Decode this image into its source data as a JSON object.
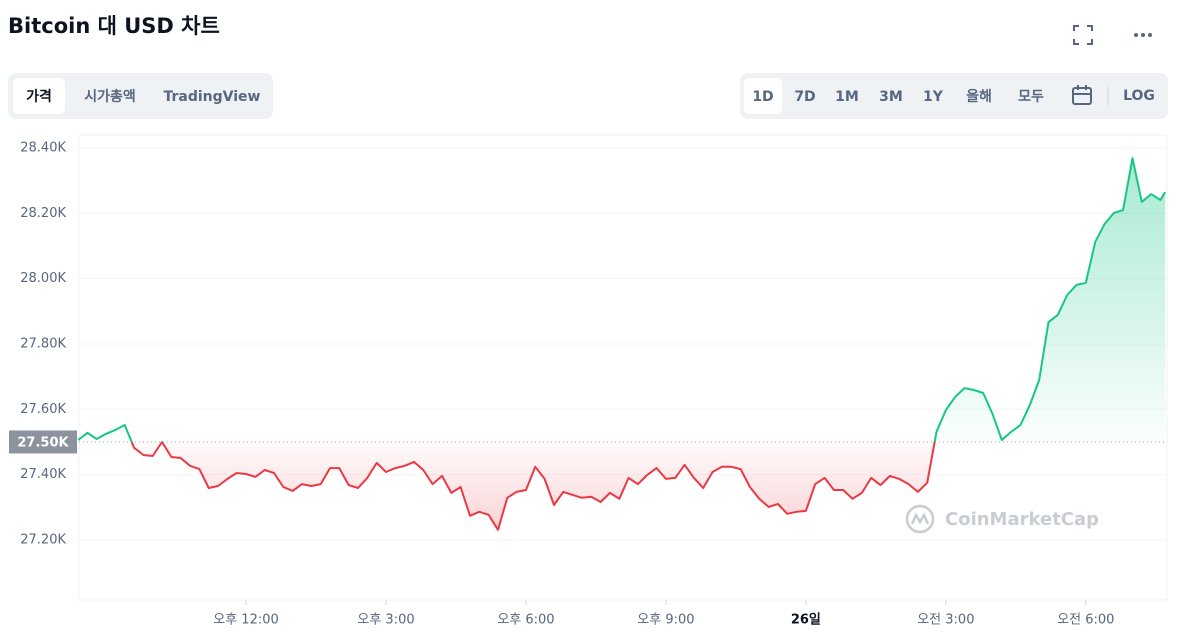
{
  "header": {
    "title": "Bitcoin 대 USD 차트"
  },
  "tabs": {
    "items": [
      "가격",
      "시가총액",
      "TradingView"
    ],
    "selected": 0
  },
  "ranges": {
    "items": [
      "1D",
      "7D",
      "1M",
      "3M",
      "1Y",
      "올해",
      "모두"
    ],
    "selected": 0,
    "log": "LOG"
  },
  "chart_data": {
    "type": "line",
    "watermark": "CoinMarketCap",
    "x": [
      8.4,
      8.6,
      8.8,
      9.0,
      9.2,
      9.4,
      9.6,
      9.8,
      10.0,
      10.2,
      10.4,
      10.6,
      10.8,
      11.0,
      11.2,
      11.4,
      11.6,
      11.8,
      12.0,
      12.2,
      12.4,
      12.6,
      12.8,
      13.0,
      13.2,
      13.4,
      13.6,
      13.8,
      14.0,
      14.2,
      14.4,
      14.6,
      14.8,
      15.0,
      15.2,
      15.4,
      15.6,
      15.8,
      16.0,
      16.2,
      16.4,
      16.6,
      16.8,
      17.0,
      17.2,
      17.4,
      17.6,
      17.8,
      18.0,
      18.2,
      18.4,
      18.6,
      18.8,
      19.0,
      19.2,
      19.4,
      19.6,
      19.8,
      20.0,
      20.2,
      20.4,
      20.6,
      20.8,
      21.0,
      21.2,
      21.4,
      21.6,
      21.8,
      22.0,
      22.2,
      22.4,
      22.6,
      22.8,
      23.0,
      23.2,
      23.4,
      23.6,
      23.8,
      24.0,
      24.2,
      24.4,
      24.6,
      24.8,
      25.0,
      25.2,
      25.4,
      25.6,
      25.8,
      26.0,
      26.2,
      26.4,
      26.6,
      26.8,
      27.0,
      27.2,
      27.4,
      27.6,
      27.8,
      28.0,
      28.2,
      28.4,
      28.6,
      28.8,
      29.0,
      29.2,
      29.4,
      29.6,
      29.8,
      30.0,
      30.2,
      30.4,
      30.6,
      30.8,
      31.0,
      31.2,
      31.4,
      31.6,
      31.7
    ],
    "values": [
      27506,
      27528,
      27509,
      27525,
      27537,
      27552,
      27482,
      27460,
      27457,
      27500,
      27454,
      27451,
      27427,
      27417,
      27359,
      27365,
      27387,
      27405,
      27402,
      27393,
      27414,
      27405,
      27362,
      27350,
      27371,
      27365,
      27371,
      27420,
      27420,
      27368,
      27359,
      27390,
      27436,
      27408,
      27420,
      27427,
      27439,
      27414,
      27371,
      27396,
      27344,
      27362,
      27274,
      27286,
      27277,
      27231,
      27329,
      27347,
      27353,
      27424,
      27387,
      27307,
      27347,
      27338,
      27329,
      27332,
      27316,
      27344,
      27326,
      27390,
      27371,
      27399,
      27420,
      27387,
      27390,
      27430,
      27390,
      27359,
      27408,
      27424,
      27424,
      27417,
      27362,
      27326,
      27301,
      27310,
      27280,
      27286,
      27289,
      27371,
      27390,
      27353,
      27353,
      27326,
      27344,
      27390,
      27368,
      27396,
      27387,
      27371,
      27347,
      27375,
      27531,
      27598,
      27638,
      27665,
      27659,
      27650,
      27586,
      27506,
      27531,
      27552,
      27613,
      27690,
      27867,
      27889,
      27950,
      27981,
      27987,
      28112,
      28167,
      28201,
      28210,
      28369,
      28235,
      28259,
      28241,
      28265
    ],
    "color_up": "#16c784",
    "color_down": "#ea3943",
    "reference": {
      "value": 27500,
      "label": "27.50K"
    },
    "xlim": [
      8.42,
      31.74
    ],
    "xticks": [
      {
        "value": 12,
        "label": "오후 12:00"
      },
      {
        "value": 15,
        "label": "오후 3:00"
      },
      {
        "value": 18,
        "label": "오후 6:00"
      },
      {
        "value": 21,
        "label": "오후 9:00"
      },
      {
        "value": 24,
        "label": "26일"
      },
      {
        "value": 27,
        "label": "오전 3:00"
      },
      {
        "value": 30,
        "label": "오전 6:00"
      }
    ],
    "ylim": [
      27016,
      28440
    ],
    "yticks": [
      {
        "value": 27200,
        "label": "27.20K"
      },
      {
        "value": 27400,
        "label": "27.40K"
      },
      {
        "value": 27600,
        "label": "27.60K"
      },
      {
        "value": 27800,
        "label": "27.80K"
      },
      {
        "value": 28000,
        "label": "28.00K"
      },
      {
        "value": 28200,
        "label": "28.20K"
      },
      {
        "value": 28400,
        "label": "28.40K"
      }
    ],
    "grid": true
  }
}
